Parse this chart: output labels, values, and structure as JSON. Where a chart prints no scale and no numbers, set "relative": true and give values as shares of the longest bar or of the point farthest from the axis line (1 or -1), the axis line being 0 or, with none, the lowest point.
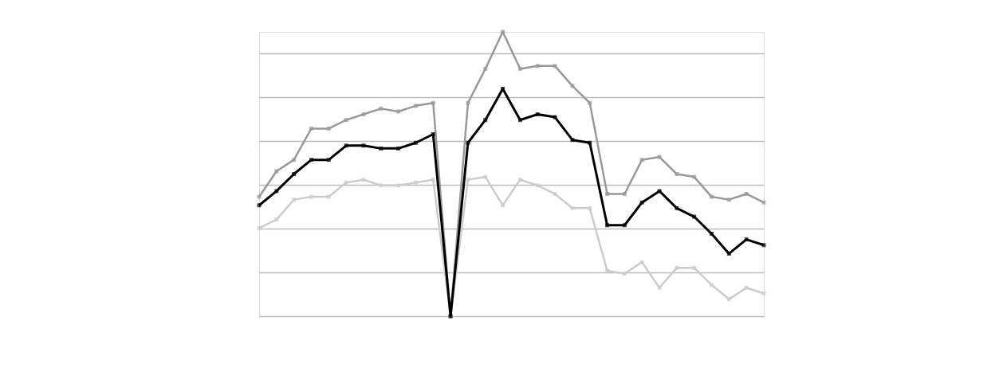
{
  "chart_data": {
    "type": "line",
    "relative": true,
    "categories": [
      null,
      null,
      null,
      null,
      null,
      null,
      null,
      null,
      null,
      null,
      null,
      null,
      null,
      null,
      null,
      null,
      null,
      null,
      null,
      null,
      null,
      null,
      null,
      null,
      null,
      null,
      null,
      null,
      null,
      null
    ],
    "series": [
      {
        "color": "#999999",
        "values": [
          0.42,
          0.51,
          0.55,
          0.66,
          0.66,
          0.69,
          0.71,
          0.73,
          0.72,
          0.74,
          0.75,
          0,
          0.75,
          0.87,
          1,
          0.87,
          0.88,
          0.88,
          0.81,
          0.75,
          0.43,
          0.43,
          0.55,
          0.56,
          0.5,
          0.49,
          0.42,
          0.41,
          0.43,
          0.4
        ]
      },
      {
        "color": "#cccccc",
        "values": [
          0.31,
          0.34,
          0.41,
          0.42,
          0.42,
          0.47,
          0.48,
          0.46,
          0.46,
          0.47,
          0.48,
          0,
          0.48,
          0.49,
          0.39,
          0.48,
          0.46,
          0.43,
          0.38,
          0.38,
          0.16,
          0.15,
          0.19,
          0.1,
          0.17,
          0.17,
          0.11,
          0.06,
          0.1,
          0.08
        ]
      },
      {
        "color": "#000000",
        "values": [
          0.39,
          0.44,
          0.5,
          0.55,
          0.55,
          0.6,
          0.6,
          0.59,
          0.59,
          0.61,
          0.64,
          0,
          0.61,
          0.69,
          0.8,
          0.69,
          0.71,
          0.7,
          0.62,
          0.61,
          0.32,
          0.32,
          0.4,
          0.44,
          0.38,
          0.35,
          0.29,
          0.22,
          0.27,
          0.25
        ]
      }
    ],
    "grid": "y",
    "marker": "square",
    "line_style": "solid",
    "legend": false
  }
}
